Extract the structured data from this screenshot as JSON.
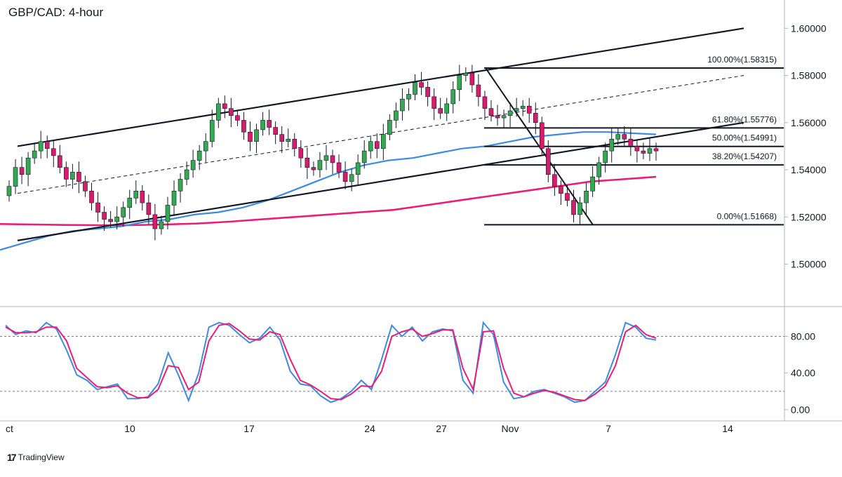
{
  "title": "GBP/CAD: 4-hour",
  "brand": {
    "logo": "17",
    "name": "TradingView"
  },
  "chart_data": {
    "type": "candlestick",
    "price_axis": {
      "ticks": [
        "1.60000",
        "1.58000",
        "1.56000",
        "1.54000",
        "1.52000",
        "1.50000"
      ],
      "range": [
        1.482,
        1.612
      ]
    },
    "time_axis": {
      "ticks": [
        "ct",
        "10",
        "17",
        "24",
        "27",
        "Nov",
        "7",
        "14"
      ]
    },
    "fibonacci": [
      {
        "label": "100.00%(1.58315)",
        "price": 1.58315
      },
      {
        "label": "61.80%(1.55776)",
        "price": 1.55776
      },
      {
        "label": "50.00%(1.54991)",
        "price": 1.54991
      },
      {
        "label": "38.20%(1.54207)",
        "price": 1.54207
      },
      {
        "label": "0.00%(1.51668)",
        "price": 1.51668
      }
    ],
    "channel": {
      "upper": [
        [
          0.0,
          1.55
        ],
        [
          1.0,
          1.6
        ]
      ],
      "middle": [
        [
          0.0,
          1.53
        ],
        [
          1.0,
          1.58
        ]
      ],
      "lower": [
        [
          0.0,
          1.51
        ],
        [
          1.0,
          1.56
        ]
      ]
    },
    "colors": {
      "up": "#34a853",
      "down": "#d81b6f",
      "sma_fast": "#3d8be0",
      "sma_slow": "#e91e78",
      "stoch_k": "#3d8be0",
      "stoch_d": "#e91e78"
    },
    "candles_close": [
      1.533,
      1.541,
      1.538,
      1.545,
      1.548,
      1.552,
      1.549,
      1.546,
      1.541,
      1.536,
      1.539,
      1.535,
      1.531,
      1.526,
      1.522,
      1.519,
      1.518,
      1.52,
      1.524,
      1.528,
      1.531,
      1.526,
      1.521,
      1.515,
      1.518,
      1.525,
      1.531,
      1.536,
      1.54,
      1.544,
      1.548,
      1.552,
      1.561,
      1.568,
      1.566,
      1.563,
      1.561,
      1.556,
      1.552,
      1.557,
      1.561,
      1.558,
      1.555,
      1.552,
      1.553,
      1.549,
      1.545,
      1.541,
      1.54,
      1.544,
      1.546,
      1.543,
      1.539,
      1.535,
      1.538,
      1.543,
      1.548,
      1.552,
      1.549,
      1.555,
      1.561,
      1.565,
      1.57,
      1.572,
      1.577,
      1.575,
      1.571,
      1.566,
      1.564,
      1.568,
      1.574,
      1.58,
      1.581,
      1.576,
      1.571,
      1.566,
      1.563,
      1.562,
      1.563,
      1.565,
      1.566,
      1.567,
      1.564,
      1.56,
      1.549,
      1.538,
      1.533,
      1.53,
      1.527,
      1.521,
      1.526,
      1.531,
      1.537,
      1.543,
      1.548,
      1.553,
      1.555,
      1.553,
      1.55,
      1.548,
      1.547,
      1.549,
      1.548
    ],
    "sma_fast": [
      1.506,
      1.509,
      1.512,
      1.514,
      1.515,
      1.516,
      1.518,
      1.519,
      1.521,
      1.522,
      1.524,
      1.527,
      1.531,
      1.535,
      1.539,
      1.542,
      1.544,
      1.545,
      1.547,
      1.549,
      1.55,
      1.552,
      1.554,
      1.555,
      1.556,
      1.556,
      1.5555,
      1.555
    ],
    "sma_slow": [
      1.517,
      1.5168,
      1.5166,
      1.5165,
      1.5165,
      1.5168,
      1.5172,
      1.518,
      1.519,
      1.52,
      1.521,
      1.522,
      1.523,
      1.525,
      1.527,
      1.529,
      1.531,
      1.533,
      1.535,
      1.536,
      1.537
    ],
    "stochastic": {
      "ticks": [
        "80.00",
        "40.00",
        "0.00"
      ],
      "levels": [
        80,
        20
      ],
      "k": [
        92,
        82,
        86,
        84,
        95,
        88,
        65,
        38,
        32,
        22,
        25,
        28,
        12,
        12,
        14,
        28,
        62,
        38,
        10,
        40,
        90,
        95,
        92,
        82,
        73,
        78,
        90,
        76,
        42,
        28,
        26,
        15,
        8,
        12,
        20,
        32,
        22,
        55,
        92,
        80,
        90,
        75,
        85,
        88,
        86,
        32,
        18,
        95,
        82,
        30,
        12,
        14,
        20,
        22,
        18,
        14,
        8,
        10,
        20,
        30,
        60,
        95,
        90,
        78,
        76
      ],
      "d": [
        90,
        84,
        84,
        85,
        90,
        90,
        75,
        45,
        35,
        25,
        24,
        26,
        18,
        13,
        13,
        22,
        48,
        46,
        22,
        30,
        75,
        92,
        94,
        86,
        77,
        76,
        85,
        82,
        55,
        32,
        27,
        20,
        12,
        11,
        17,
        26,
        25,
        42,
        80,
        85,
        88,
        80,
        83,
        87,
        87,
        45,
        22,
        85,
        86,
        45,
        18,
        14,
        18,
        21,
        19,
        15,
        11,
        10,
        17,
        26,
        48,
        85,
        92,
        82,
        78
      ]
    }
  }
}
